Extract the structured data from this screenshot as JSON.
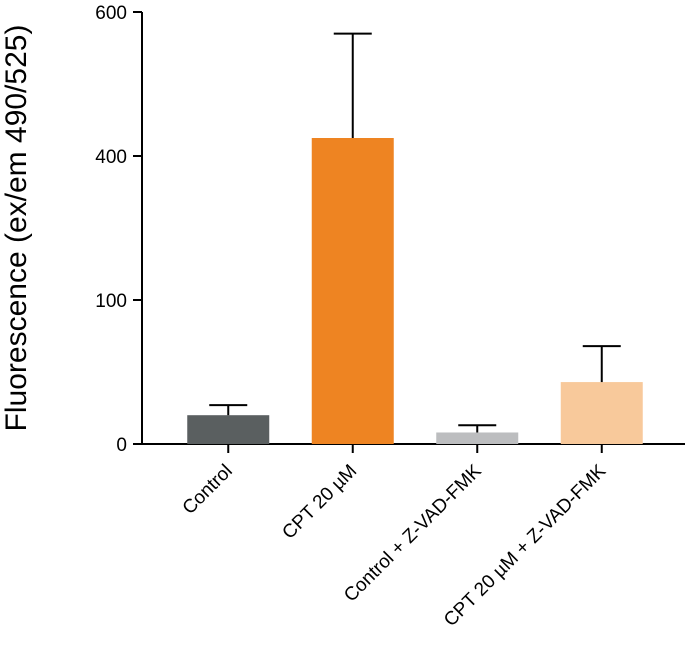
{
  "chart_data": {
    "type": "bar",
    "title": "",
    "xlabel": "",
    "ylabel": "Fluorescence (ex/em 490/525)",
    "categories": [
      "Control",
      "CPT 20 µM",
      "Control + Z-VAD-FMK",
      "CPT 20 µM + Z-VAD-FMK"
    ],
    "values": [
      20,
      425,
      8,
      43
    ],
    "errors": [
      7,
      145,
      5,
      25
    ],
    "colors": [
      "#5a5f60",
      "#ee8422",
      "#bcbdbf",
      "#f8c99b"
    ],
    "y_ticks": [
      {
        "value": 0,
        "label": "0"
      },
      {
        "value": 100,
        "label": "100"
      },
      {
        "value": 400,
        "label": "400"
      },
      {
        "value": 600,
        "label": "600"
      }
    ],
    "axis_breaks": [
      {
        "value": 0,
        "pos": 0
      },
      {
        "value": 100,
        "pos": 1
      },
      {
        "value": 400,
        "pos": 2
      },
      {
        "value": 600,
        "pos": 3
      }
    ],
    "grid": false,
    "legend": "none"
  }
}
